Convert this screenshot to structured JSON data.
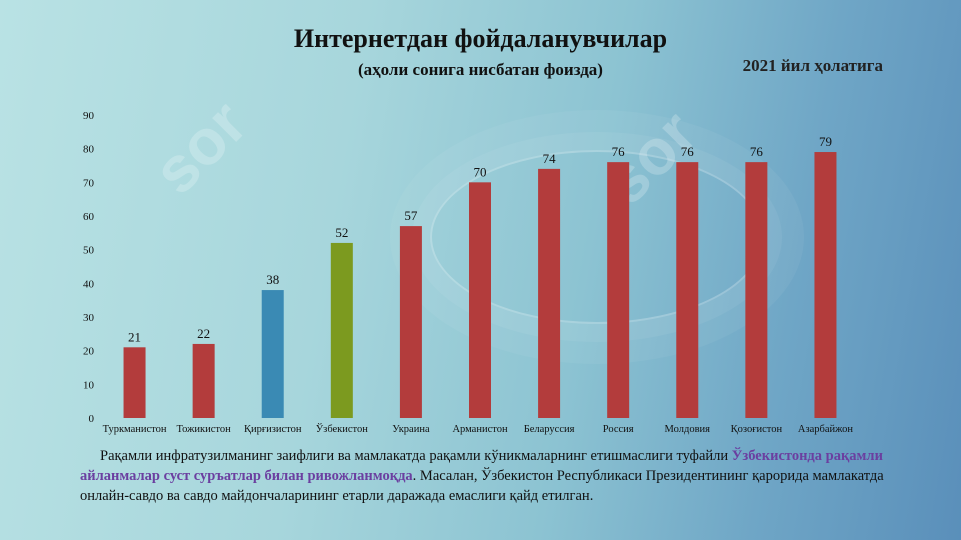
{
  "header": {
    "title": "Интернетдан фойдаланувчилар",
    "subtitle": "(аҳоли сонига нисбатан фоизда)",
    "year_note": "2021 йил ҳолатига"
  },
  "chart_data": {
    "type": "bar",
    "categories": [
      "Туркманистон",
      "Тожикистон",
      "Қирғизистон",
      "Ўзбекистон",
      "Украина",
      "Арманистон",
      "Беларуссия",
      "Россия",
      "Молдовия",
      "Қозоғистон",
      "Азарбайжон"
    ],
    "values": [
      21,
      22,
      38,
      52,
      57,
      70,
      74,
      76,
      76,
      76,
      79
    ],
    "colors": [
      "#b33c3c",
      "#b33c3c",
      "#3a8ab4",
      "#7c9a1f",
      "#b33c3c",
      "#b33c3c",
      "#b33c3c",
      "#b33c3c",
      "#b33c3c",
      "#b33c3c",
      "#b33c3c"
    ],
    "ylim": [
      0,
      90
    ],
    "yticks": [
      0,
      10,
      20,
      30,
      40,
      50,
      60,
      70,
      80,
      90
    ],
    "title": "Интернетдан фойдаланувчилар",
    "xlabel": "",
    "ylabel": "",
    "grid": false,
    "legend": "none"
  },
  "caption": {
    "part1": "Рақамли инфратузилманинг заифлиги ва мамлакатда рақамли кўникмаларнинг етишмаслиги туфайли ",
    "highlight": "Ўзбекистонда рақамли айланмалар суст суръатлар билан ривожланмоқда",
    "part2": ". Масалан, Ўзбекистон Республикаси Президентининг қарорида мамлакатда онлайн-савдо ва савдо майдончаларининг етарли даражада емаслиги қайд етилган."
  },
  "watermark": "sor"
}
